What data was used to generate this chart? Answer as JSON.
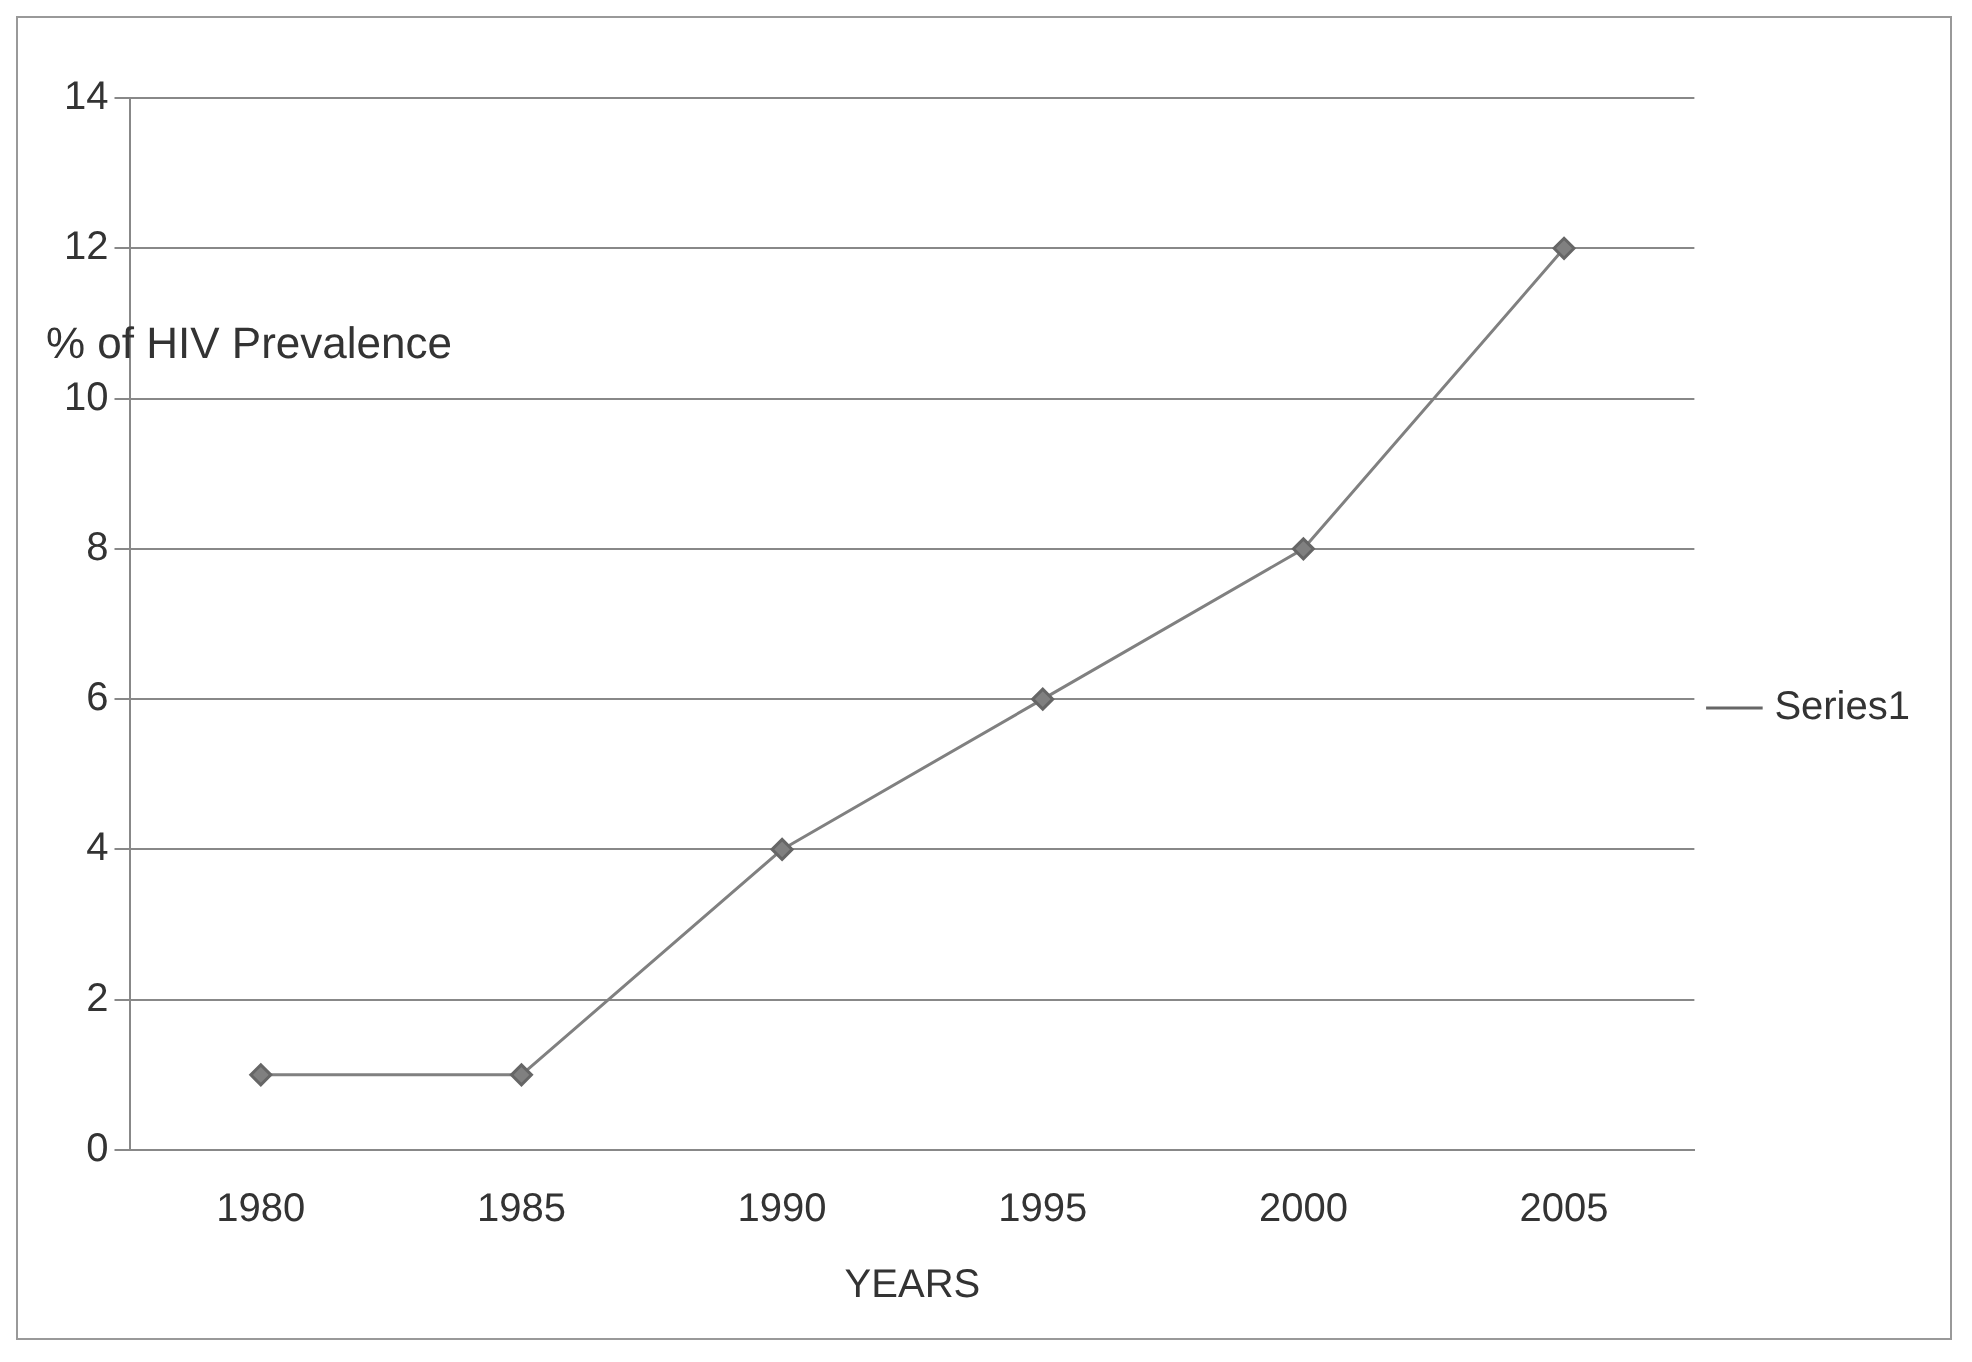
{
  "chart_data": {
    "type": "line",
    "xlabel": "YEARS",
    "ylabel": "% of HIV Prevalence",
    "categories": [
      "1980",
      "1985",
      "1990",
      "1995",
      "2000",
      "2005"
    ],
    "series": [
      {
        "name": "Series1",
        "color": "#808080",
        "values": [
          1,
          1,
          4,
          6,
          8,
          12
        ]
      }
    ],
    "ylim": [
      0,
      14
    ],
    "yticks": [
      0,
      2,
      4,
      6,
      8,
      10,
      12,
      14
    ],
    "grid": "y",
    "legend": "right",
    "marker": "diamond",
    "line_style": "solid"
  }
}
